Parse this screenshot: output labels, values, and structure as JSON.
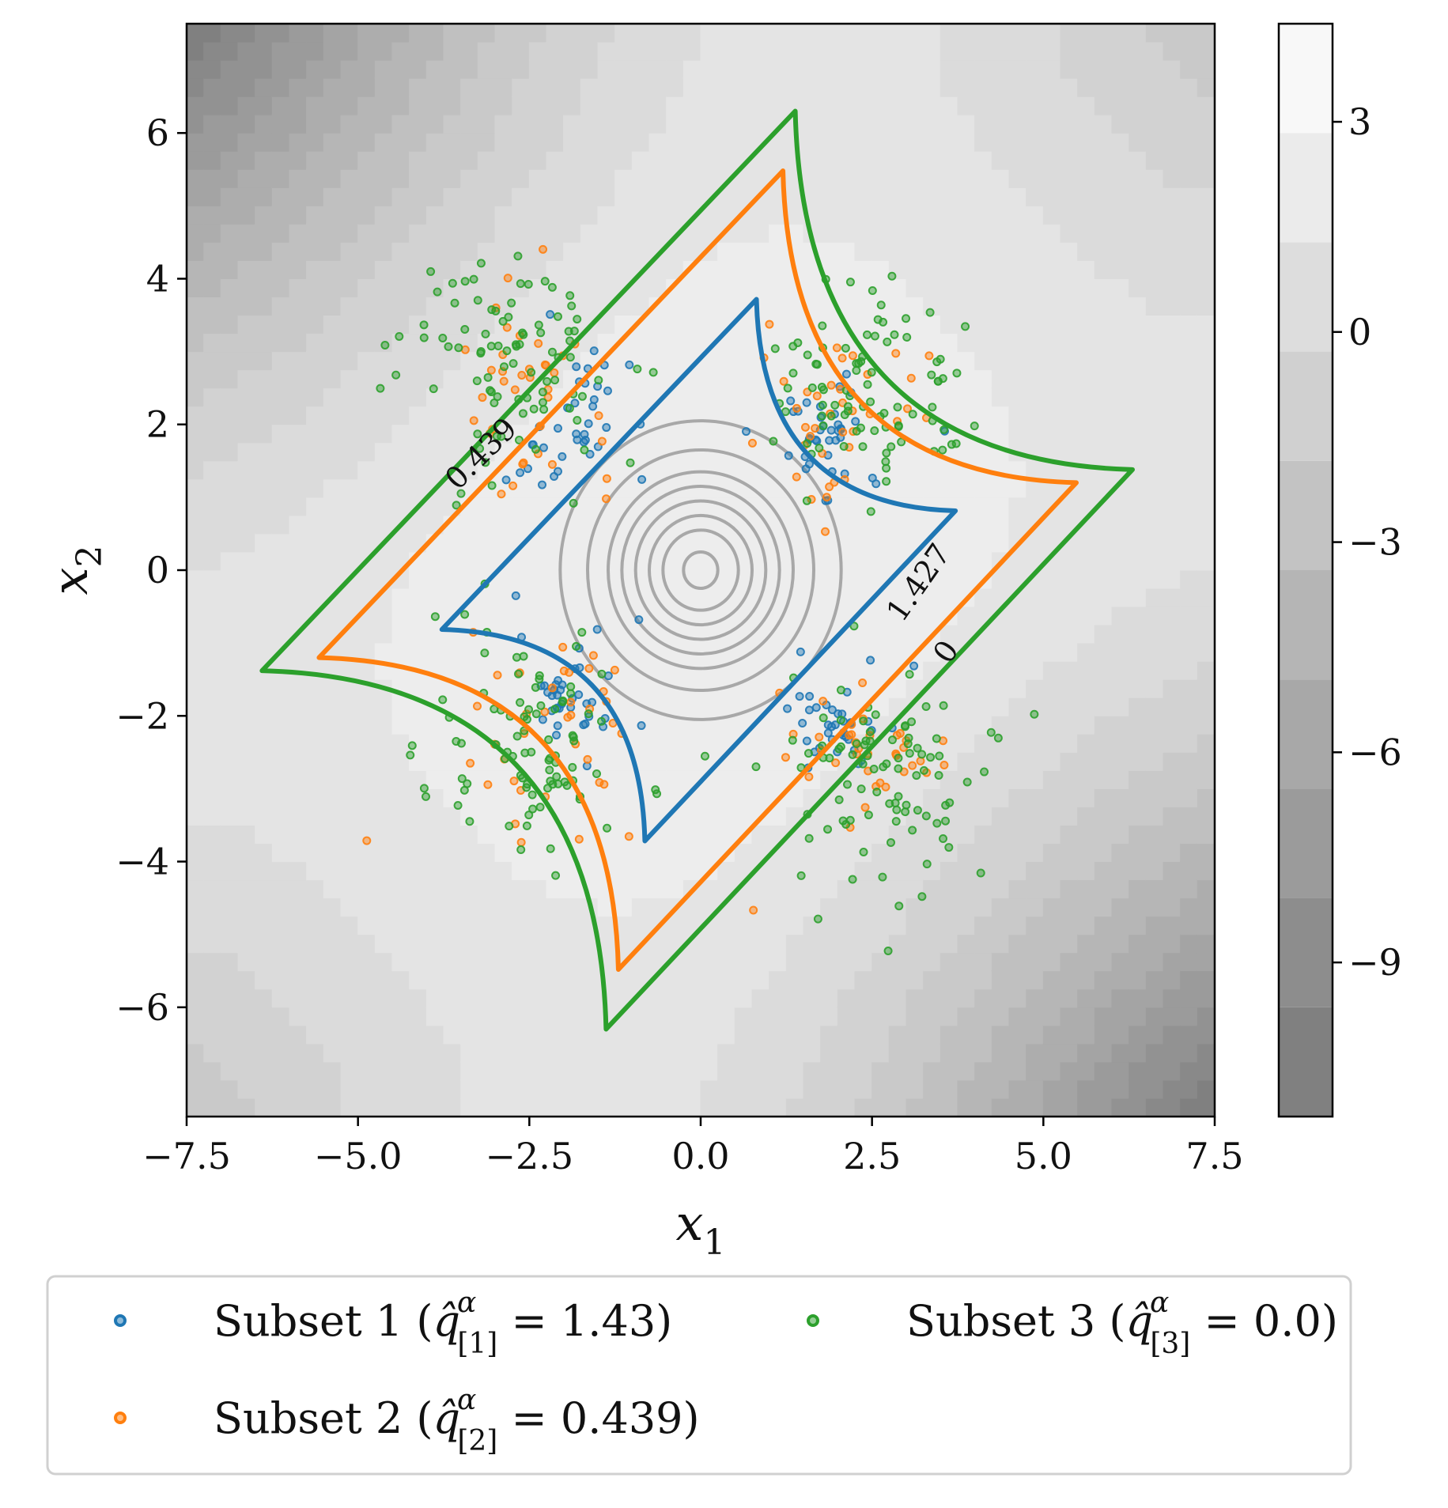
{
  "chart_data": {
    "type": "contour",
    "xlabel": "x",
    "xlabel_sub": "1",
    "ylabel": "x",
    "ylabel_sub": "2",
    "xlim": [
      -7.5,
      7.5
    ],
    "ylim": [
      -7.5,
      7.5
    ],
    "x_ticks": [
      -7.5,
      -5.0,
      -2.5,
      0.0,
      2.5,
      5.0,
      7.5
    ],
    "x_tick_labels": [
      "−7.5",
      "−5.0",
      "−2.5",
      "0.0",
      "2.5",
      "5.0",
      "7.5"
    ],
    "y_ticks": [
      -6,
      -4,
      -2,
      0,
      2,
      4,
      6
    ],
    "y_tick_labels": [
      "−6",
      "−4",
      "−2",
      "0",
      "2",
      "4",
      "6"
    ],
    "colorbar": {
      "range": [
        -11.2,
        4.4
      ],
      "ticks": [
        3,
        0,
        -3,
        -6,
        -9
      ],
      "tick_labels": [
        "3",
        "0",
        "−3",
        "−6",
        "−9"
      ],
      "levels": 10,
      "colormap": "gray"
    },
    "contour_labels": [
      {
        "text": "0.439",
        "x": -3.1,
        "y": 1.5,
        "angle_deg": -45
      },
      {
        "text": "1.427",
        "x": 3.3,
        "y": -0.25,
        "angle_deg": -55
      },
      {
        "text": "0",
        "x": 3.7,
        "y": -1.2,
        "angle_deg": -55
      }
    ],
    "series": [
      {
        "name": "Subset 1",
        "label_prefix": "Subset 1 (",
        "q_symbol": "q̂",
        "q_sub": "[1]",
        "q_sup": "α",
        "label_suffix": " = 1.43)",
        "q": 1.43,
        "color": "#1f77b4",
        "boundary_level": 1.427
      },
      {
        "name": "Subset 2",
        "label_prefix": "Subset 2 (",
        "q_symbol": "q̂",
        "q_sub": "[2]",
        "q_sup": "α",
        "label_suffix": " = 0.439)",
        "q": 0.439,
        "color": "#ff7f0e",
        "boundary_level": 0.439
      },
      {
        "name": "Subset 3",
        "label_prefix": "Subset 3 (",
        "q_symbol": "q̂",
        "q_sub": "[3]",
        "q_sup": "α",
        "label_suffix": " = 0.0)",
        "q": 0.0,
        "color": "#2ca02c",
        "boundary_level": 0.0
      }
    ],
    "center_rings": {
      "radii": [
        0.25,
        0.55,
        0.75,
        0.95,
        1.15,
        1.35,
        1.65,
        2.05
      ],
      "color": "#a8a8a8"
    },
    "legend_position": "lower center (below plot)"
  }
}
